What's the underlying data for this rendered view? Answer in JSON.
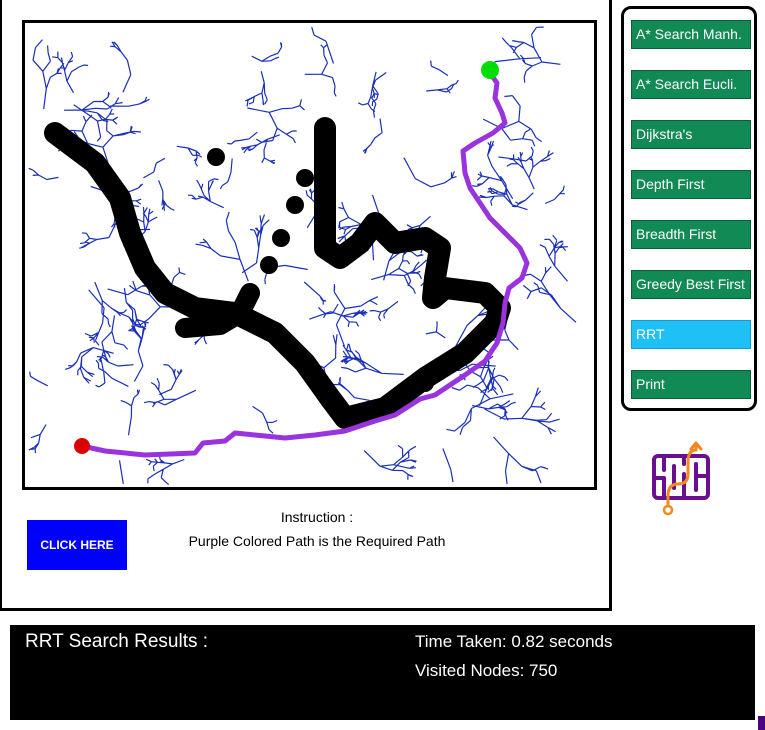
{
  "buttons": {
    "click_here": "CLICK HERE"
  },
  "instruction": {
    "heading": "Instruction :",
    "text": "Purple Colored Path is the Required Path"
  },
  "algorithms": [
    {
      "label": "A* Search Manh.",
      "active": false
    },
    {
      "label": "A* Search Eucli.",
      "active": false
    },
    {
      "label": "Dijkstra's",
      "active": false
    },
    {
      "label": "Depth First",
      "active": false
    },
    {
      "label": "Breadth First",
      "active": false
    },
    {
      "label": "Greedy Best First",
      "active": false
    },
    {
      "label": "RRT",
      "active": true
    },
    {
      "label": "Print",
      "active": false
    }
  ],
  "results": {
    "title": "RRT Search Results :",
    "time_taken": "Time Taken: 0.82 seconds",
    "visited_nodes": "Visited Nodes: 750"
  },
  "colors": {
    "button_green": "#128a55",
    "button_active": "#1ec0f5",
    "click_here_bg": "#0000ff",
    "tree": "#1a2fb8",
    "path": "#9933dd",
    "start": "#00dd00",
    "goal": "#dd0000",
    "obstacle": "#000000"
  },
  "icons": {
    "logo": "maze-path-icon"
  }
}
